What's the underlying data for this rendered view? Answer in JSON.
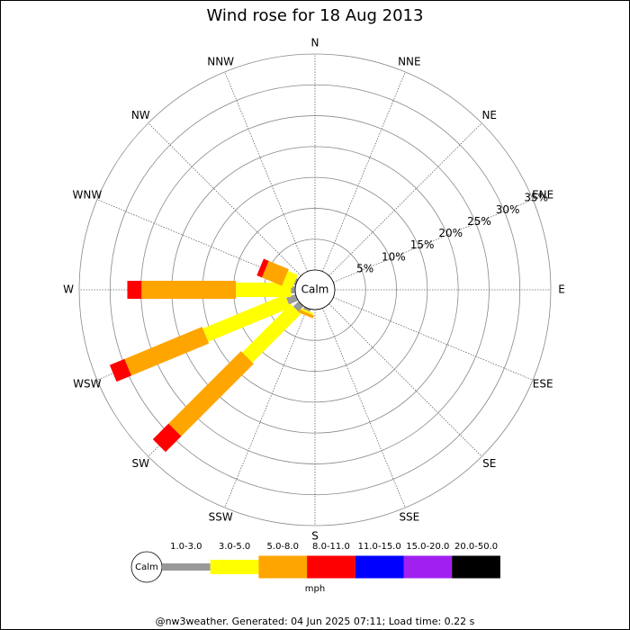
{
  "chart_data": {
    "type": "windrose",
    "title": "Wind rose for 18 Aug 2013",
    "directions": [
      "N",
      "NNE",
      "NE",
      "ENE",
      "E",
      "ESE",
      "SE",
      "SSE",
      "S",
      "SSW",
      "SW",
      "WSW",
      "W",
      "WNW",
      "NW",
      "NNW"
    ],
    "calm_label": "Calm",
    "unit": "mph",
    "rlim": [
      0,
      35
    ],
    "rticks": [
      {
        "value": 5,
        "label": "5%"
      },
      {
        "value": 10,
        "label": "10%"
      },
      {
        "value": 15,
        "label": "15%"
      },
      {
        "value": 20,
        "label": "20%"
      },
      {
        "value": 25,
        "label": "25%"
      },
      {
        "value": 30,
        "label": "30%"
      },
      {
        "value": 35,
        "label": "35%"
      }
    ],
    "series": [
      {
        "name": "1.0-3.0",
        "color": "#999999",
        "values": [
          0,
          0,
          0,
          0,
          0,
          0,
          0,
          0,
          0,
          0.4,
          1.2,
          1.6,
          0.7,
          0.3,
          0,
          0
        ]
      },
      {
        "name": "3.0-5.0",
        "color": "#ffff00",
        "values": [
          0,
          0,
          0,
          0,
          0,
          0,
          0,
          0,
          0,
          0.3,
          11.1,
          14.4,
          8.9,
          1.7,
          0,
          0
        ]
      },
      {
        "name": "5.0-8.0",
        "color": "#ffa500",
        "values": [
          0,
          0,
          0,
          0,
          0,
          0,
          0,
          0,
          0,
          0.5,
          16.6,
          13.6,
          15.3,
          3.5,
          0,
          0
        ]
      },
      {
        "name": "8.0-11.0",
        "color": "#ff0000",
        "values": [
          0,
          0,
          0,
          0,
          0,
          0,
          0,
          0,
          0,
          0,
          3.6,
          2.6,
          2.3,
          0.9,
          0,
          0
        ]
      },
      {
        "name": "11.0-15.0",
        "color": "#0000ff",
        "values": [
          0,
          0,
          0,
          0,
          0,
          0,
          0,
          0,
          0,
          0,
          0,
          0,
          0,
          0,
          0,
          0
        ]
      },
      {
        "name": "15.0-20.0",
        "color": "#a020f0",
        "values": [
          0,
          0,
          0,
          0,
          0,
          0,
          0,
          0,
          0,
          0,
          0,
          0,
          0,
          0,
          0,
          0
        ]
      },
      {
        "name": "20.0-50.0",
        "color": "#000000",
        "values": [
          0,
          0,
          0,
          0,
          0,
          0,
          0,
          0,
          0,
          0,
          0,
          0,
          0,
          0,
          0,
          0
        ]
      }
    ]
  },
  "footer": "@nw3weather. Generated: 04 Jun 2025 07:11; Load time: 0.22 s"
}
